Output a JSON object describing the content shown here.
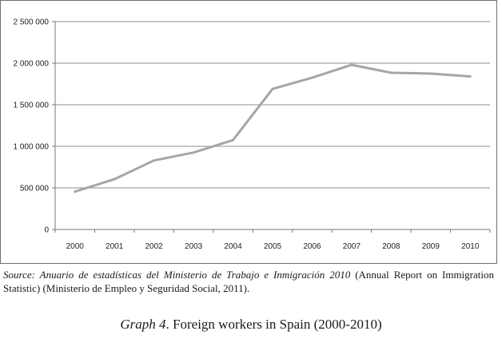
{
  "chart_data": {
    "type": "line",
    "categories": [
      "2000",
      "2001",
      "2002",
      "2003",
      "2004",
      "2005",
      "2006",
      "2007",
      "2008",
      "2009",
      "2010"
    ],
    "series": [
      {
        "values": [
          455000,
          605000,
          830000,
          925000,
          1075000,
          1690000,
          1825000,
          1980000,
          1885000,
          1875000,
          1840000
        ]
      }
    ],
    "ylim": [
      0,
      2500000
    ],
    "yticks": [
      0,
      500000,
      1000000,
      1500000,
      2000000,
      2500000
    ],
    "ytick_labels": [
      "0",
      "500 000",
      "1 000 000",
      "1 500 000",
      "2 000 000",
      "2 500 000"
    ],
    "grid": true,
    "line_color": "#a6a6a6",
    "grid_color": "#8c8c8c"
  },
  "source": {
    "prefix": "Source: Anuario de estadísticas del Ministerio de Trabajo e Inmigración 2010",
    "rest": " (Annual Report on Immigration Statistic) (Ministerio de Empleo y Seguridad Social, 2011)."
  },
  "caption": {
    "label": "Graph 4",
    "text": ". Foreign workers in Spain (2000-2010)"
  }
}
